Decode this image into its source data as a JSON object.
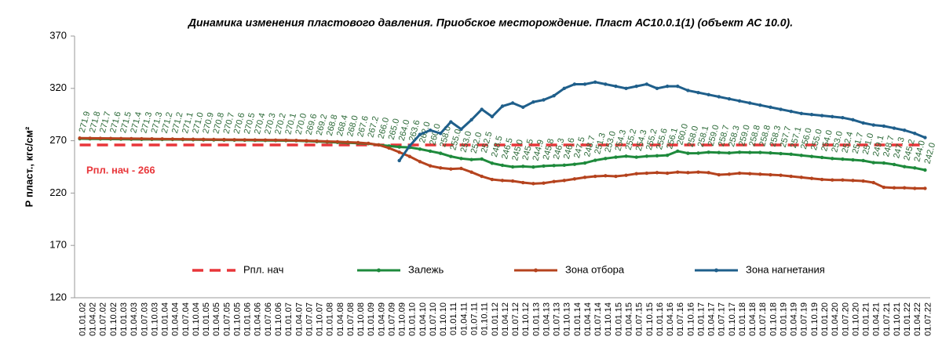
{
  "chart_data": {
    "type": "line",
    "title": "Динамика изменения пластового давления. Приобское месторождение. Пласт  АС10.0.1(1)  (объект АС 10.0).",
    "y_label": "Р пласт., кгс/см²",
    "annotation": "Рпл. нач - 266",
    "categories": [
      "01.01.02",
      "01.04.02",
      "01.07.02",
      "01.10.02",
      "01.01.03",
      "01.04.03",
      "01.07.03",
      "01.10.03",
      "01.01.04",
      "01.04.04",
      "01.07.04",
      "01.10.04",
      "01.01.05",
      "01.04.05",
      "01.07.05",
      "01.10.05",
      "01.01.06",
      "01.04.06",
      "01.07.06",
      "01.10.06",
      "01.01.07",
      "01.04.07",
      "01.07.07",
      "01.10.07",
      "01.01.08",
      "01.04.08",
      "01.07.08",
      "01.10.08",
      "01.01.09",
      "01.04.09",
      "01.07.09",
      "01.10.09",
      "01.01.10",
      "01.04.10",
      "01.07.10",
      "01.10.10",
      "01.01.11",
      "01.04.11",
      "01.07.11",
      "01.10.11",
      "01.01.12",
      "01.04.12",
      "01.07.12",
      "01.10.12",
      "01.01.13",
      "01.04.13",
      "01.07.13",
      "01.10.13",
      "01.01.14",
      "01.04.14",
      "01.07.14",
      "01.10.14",
      "01.01.15",
      "01.04.15",
      "01.07.15",
      "01.10.15",
      "01.01.16",
      "01.04.16",
      "01.07.16",
      "01.10.16",
      "01.01.17",
      "01.04.17",
      "01.07.17",
      "01.10.17",
      "01.01.18",
      "01.04.18",
      "01.07.18",
      "01.10.18",
      "01.01.19",
      "01.04.19",
      "01.07.19",
      "01.10.19",
      "01.01.20",
      "01.04.20",
      "01.07.20",
      "01.10.20",
      "01.01.21",
      "01.04.21",
      "01.07.21",
      "01.10.21",
      "01.01.22",
      "01.04.22",
      "01.07.22"
    ],
    "ylim": [
      120,
      370
    ],
    "yticks": [
      120,
      170,
      220,
      270,
      320,
      370
    ],
    "series": [
      {
        "name": "Рпл. нач",
        "color": "#e8363a",
        "dashed": true,
        "markers": false,
        "values": [
          266,
          266,
          266,
          266,
          266,
          266,
          266,
          266,
          266,
          266,
          266,
          266,
          266,
          266,
          266,
          266,
          266,
          266,
          266,
          266,
          266,
          266,
          266,
          266,
          266,
          266,
          266,
          266,
          266,
          266,
          266,
          266,
          266,
          266,
          266,
          266,
          266,
          266,
          266,
          266,
          266,
          266,
          266,
          266,
          266,
          266,
          266,
          266,
          266,
          266,
          266,
          266,
          266,
          266,
          266,
          266,
          266,
          266,
          266,
          266,
          266,
          266,
          266,
          266,
          266,
          266,
          266,
          266,
          266,
          266,
          266,
          266,
          266,
          266,
          266,
          266,
          266,
          266,
          266,
          266,
          266,
          266,
          266
        ]
      },
      {
        "name": "Залежь",
        "color": "#1e8a3c",
        "markers": true,
        "values": [
          271.9,
          271.8,
          271.7,
          271.6,
          271.5,
          271.4,
          271.3,
          271.3,
          271.2,
          271.2,
          271.1,
          271.0,
          270.9,
          270.8,
          270.7,
          270.6,
          270.5,
          270.4,
          270.3,
          270.2,
          270.1,
          270.0,
          269.6,
          269.2,
          268.8,
          268.4,
          268.0,
          267.6,
          267.2,
          266.0,
          265.0,
          264.0,
          263.6,
          262.0,
          260.0,
          258.0,
          255.0,
          253.0,
          252.0,
          252.5,
          248.5,
          246.5,
          245.0,
          245.5,
          244.9,
          245.8,
          246.3,
          246.6,
          247.5,
          248.7,
          251.3,
          253.0,
          254.3,
          255.2,
          254.3,
          255.2,
          255.6,
          256.1,
          260.0,
          258.0,
          258.1,
          259.0,
          258.7,
          258.3,
          259.0,
          258.8,
          258.8,
          258.3,
          257.7,
          257.1,
          256.0,
          255.0,
          254.0,
          253.0,
          252.4,
          251.7,
          251.0,
          249.1,
          248.7,
          247.3,
          245.2,
          244.0,
          242.0
        ],
        "value_labels": [
          "271.9",
          "271.8",
          "271.7",
          "271.6",
          "271.5",
          "271.4",
          "271.3",
          "271.3",
          "271.2",
          "271.2",
          "271.1",
          "271.0",
          "270.9",
          "270.8",
          "270.7",
          "270.6",
          "270.5",
          "270.4",
          "270.3",
          "270.2",
          "270.1",
          "270.0",
          "269.6",
          "269.2",
          "268.8",
          "268.4",
          "268.0",
          "267.6",
          "267.2",
          "266.0",
          "265.0",
          "264.0",
          "263.6",
          "262.0",
          "260.0",
          "258.0",
          "255.0",
          "253.0",
          "252.0",
          "252.5",
          "248.5",
          "246.5",
          "245.0",
          "245.5",
          "244.9",
          "245.8",
          "246.3",
          "246.6",
          "247.5",
          "248.7",
          "251.3",
          "253.0",
          "254.3",
          "255.2",
          "254.3",
          "255.2",
          "255.6",
          "256.1",
          "260.0",
          "258.0",
          "258.1",
          "259.0",
          "258.7",
          "258.3",
          "259.0",
          "258.8",
          "258.8",
          "258.3",
          "257.7",
          "257.1",
          "256.0",
          "255.0",
          "254.0",
          "253.0",
          "252.4",
          "251.7",
          "251.0",
          "249.1",
          "248.7",
          "247.3",
          "245.2",
          "244.0",
          "242.0"
        ]
      },
      {
        "name": "Зона отбора",
        "color": "#b5431e",
        "markers": true,
        "values": [
          272.5,
          272.4,
          272.3,
          272.2,
          272.1,
          272.0,
          271.9,
          271.8,
          271.7,
          271.6,
          271.5,
          271.4,
          271.3,
          271.2,
          271.1,
          271.0,
          270.9,
          270.8,
          270.7,
          270.6,
          270.5,
          270.3,
          270.0,
          269.7,
          269.3,
          269.0,
          268.6,
          268.2,
          267.5,
          266.0,
          263.0,
          259.0,
          255.0,
          250.0,
          246.0,
          244.0,
          243.0,
          243.5,
          240.0,
          236.0,
          233.0,
          232.0,
          231.5,
          230.0,
          229.0,
          229.5,
          231.0,
          232.0,
          233.5,
          235.0,
          236.0,
          236.5,
          236.0,
          237.0,
          238.5,
          239.0,
          239.5,
          239.0,
          240.0,
          239.5,
          240.0,
          239.5,
          237.5,
          238.0,
          239.0,
          238.5,
          238.0,
          237.5,
          237.0,
          236.0,
          235.0,
          234.0,
          233.0,
          232.5,
          232.5,
          232.0,
          231.5,
          230.0,
          225.5,
          225.0,
          225.0,
          224.5,
          224.5
        ]
      },
      {
        "name": "Зона нагнетания",
        "color": "#1f5f8b",
        "markers": true,
        "values": [
          null,
          null,
          null,
          null,
          null,
          null,
          null,
          null,
          null,
          null,
          null,
          null,
          null,
          null,
          null,
          null,
          null,
          null,
          null,
          null,
          null,
          null,
          null,
          null,
          null,
          null,
          null,
          null,
          null,
          null,
          null,
          251,
          265,
          276,
          280,
          277,
          288,
          281,
          290,
          300,
          293,
          303,
          306,
          302,
          307,
          309,
          313,
          320,
          324,
          324,
          326,
          324,
          322,
          320,
          322,
          324,
          320,
          322,
          322,
          318,
          316,
          314,
          312,
          310,
          308,
          306,
          304,
          302,
          300,
          298,
          296,
          295,
          294,
          293,
          292,
          290,
          287,
          285,
          284,
          282,
          280,
          277,
          273
        ]
      }
    ]
  }
}
